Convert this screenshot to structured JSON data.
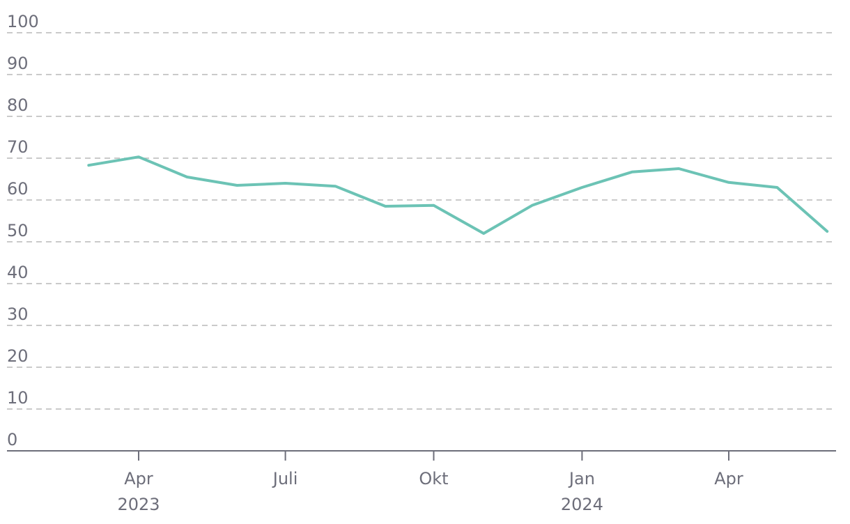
{
  "chart_data": {
    "type": "line",
    "title": "",
    "xlabel": "",
    "ylabel": "",
    "ylim": [
      0,
      100
    ],
    "yticks": [
      0,
      10,
      20,
      30,
      40,
      50,
      60,
      70,
      80,
      90,
      100
    ],
    "xlim": [
      "2023-02-01",
      "2024-06-20"
    ],
    "xticks": [
      {
        "date": "2023-04-01",
        "label": "Apr",
        "year": "2023"
      },
      {
        "date": "2023-07-01",
        "label": "Juli",
        "year": ""
      },
      {
        "date": "2023-10-01",
        "label": "Okt",
        "year": ""
      },
      {
        "date": "2024-01-01",
        "label": "Jan",
        "year": "2024"
      },
      {
        "date": "2024-04-01",
        "label": "Apr",
        "year": ""
      }
    ],
    "grid": true,
    "line_color": "#6cc3b5",
    "series": [
      {
        "points": [
          {
            "x": "2023-03-01",
            "y": 68.3
          },
          {
            "x": "2023-04-01",
            "y": 70.3
          },
          {
            "x": "2023-05-01",
            "y": 65.5
          },
          {
            "x": "2023-06-01",
            "y": 63.5
          },
          {
            "x": "2023-07-01",
            "y": 64.0
          },
          {
            "x": "2023-08-01",
            "y": 63.3
          },
          {
            "x": "2023-09-01",
            "y": 58.5
          },
          {
            "x": "2023-10-01",
            "y": 58.7
          },
          {
            "x": "2023-11-01",
            "y": 52.0
          },
          {
            "x": "2023-12-01",
            "y": 58.7
          },
          {
            "x": "2024-01-01",
            "y": 63.0
          },
          {
            "x": "2024-02-01",
            "y": 66.7
          },
          {
            "x": "2024-03-01",
            "y": 67.5
          },
          {
            "x": "2024-04-01",
            "y": 64.2
          },
          {
            "x": "2024-05-01",
            "y": 63.0
          },
          {
            "x": "2024-06-01",
            "y": 52.5
          }
        ]
      }
    ]
  }
}
